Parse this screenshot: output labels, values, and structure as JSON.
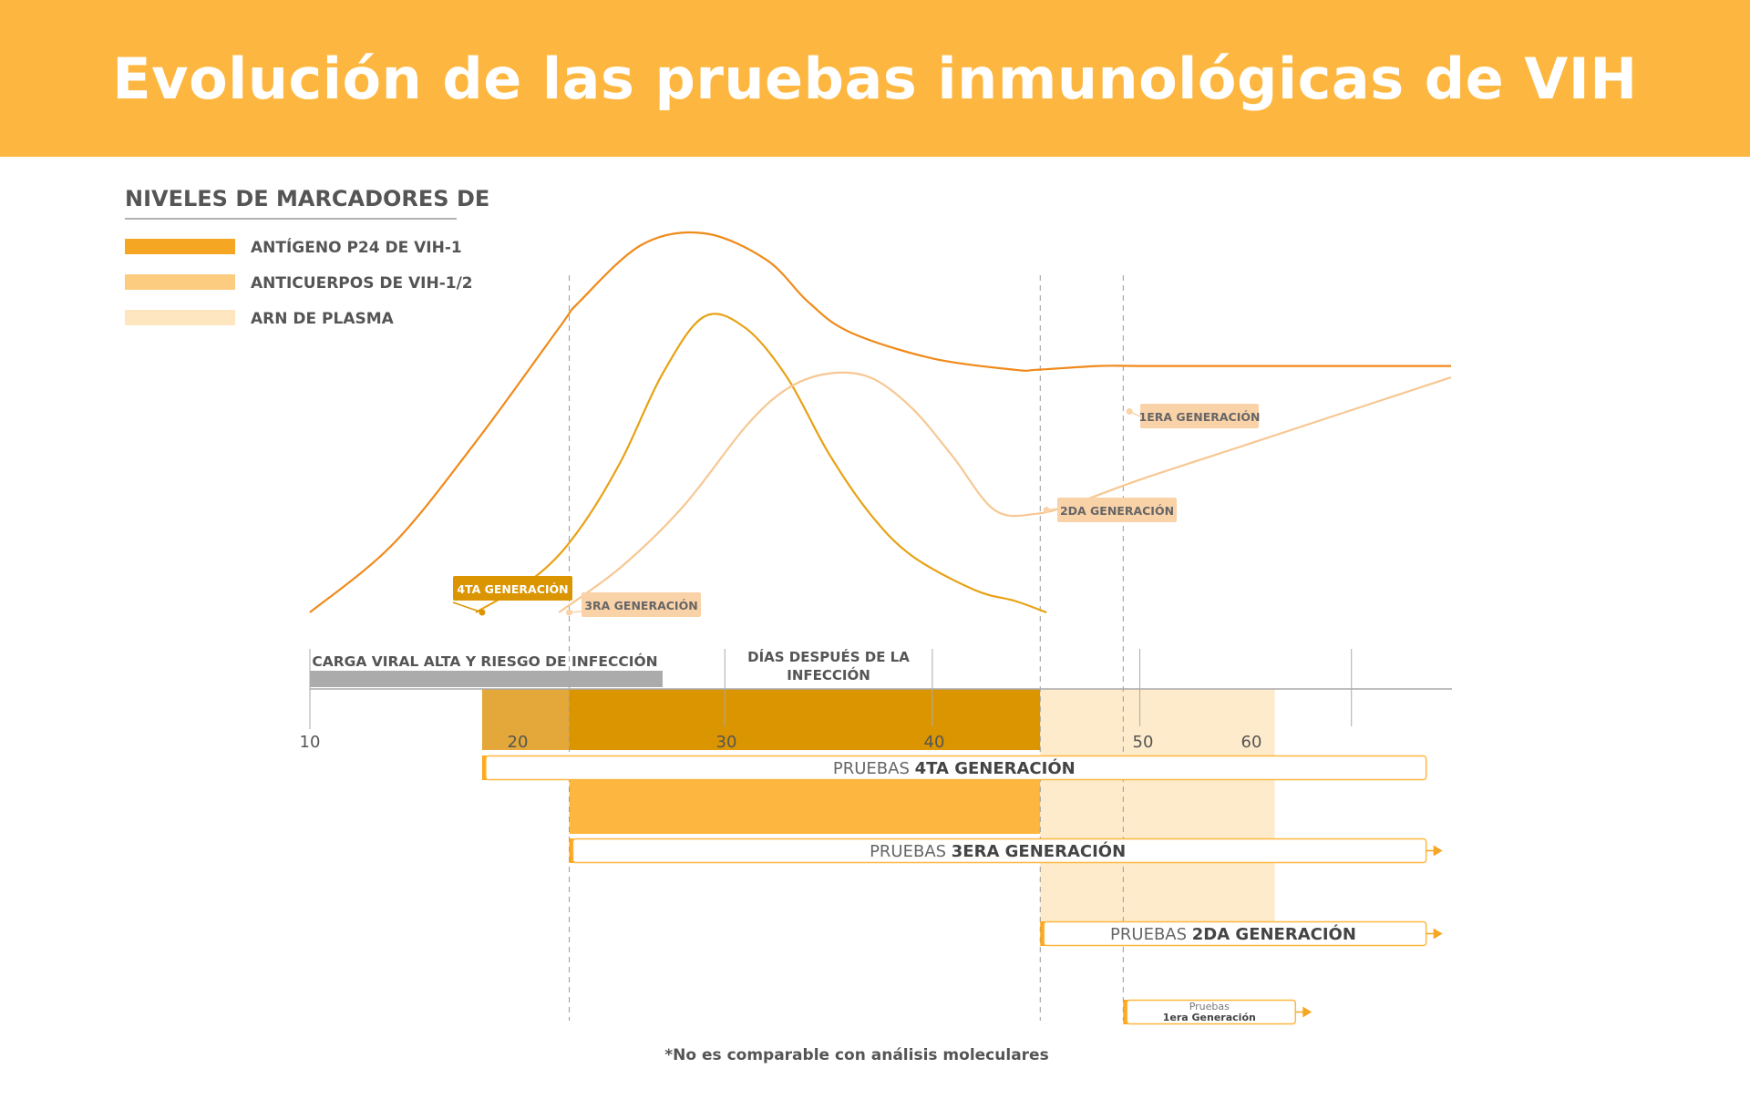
{
  "title": "Evolución de las pruebas inmunológicas de VIH",
  "footnote": "*No es comparable con análisis moleculares",
  "colors": {
    "banner": "#FDB740",
    "antigen": "#F5A623",
    "antibodies": "#FCCC80",
    "rna": "#FDE6C0",
    "curve_dark": "#F08A1A",
    "curve_mid": "#E8A215",
    "curve_light": "#F7C792",
    "gen4_dark": "#DB9500",
    "gen4_light": "#E3A839",
    "gen3": "#FDB740",
    "gen2": "#FEEBCB",
    "risk_bar": "#ABABAB"
  },
  "chart_data": {
    "type": "line",
    "legend": {
      "title": "NIVELES DE MARCADORES DE",
      "placement": "top-left",
      "items": [
        {
          "label": "ANTÍGENO P24 DE VIH-1",
          "color": "#F5A623"
        },
        {
          "label": "ANTICUERPOS DE VIH-1/2",
          "color": "#FCCC80"
        },
        {
          "label": "ARN DE PLASMA",
          "color": "#FDE6C0"
        }
      ]
    },
    "xlabel": "DÍAS DESPUÉS DE LA INFECCIÓN",
    "x_ticks": [
      {
        "label": "10",
        "value": 10
      },
      {
        "label": "20",
        "value": 20
      },
      {
        "label": "30",
        "value": 30
      },
      {
        "label": "40",
        "value": 40
      },
      {
        "label": "50",
        "value": 50
      },
      {
        "label": "60",
        "value": 60
      }
    ],
    "xlim": [
      10,
      65
    ],
    "ylim": [
      0,
      100
    ],
    "grid": false,
    "series": [
      {
        "key": "dark",
        "x": [
          10,
          14,
          18,
          22,
          23,
          26,
          29,
          32,
          34,
          36,
          40,
          44,
          45,
          48,
          50,
          55,
          60,
          65
        ],
        "y": [
          0,
          18,
          45,
          75,
          82,
          97,
          100,
          93,
          82,
          74,
          67,
          64,
          64,
          65,
          65,
          65,
          65,
          65
        ]
      },
      {
        "key": "mid",
        "x": [
          18,
          21,
          23,
          25,
          27,
          29,
          31,
          33,
          35,
          37,
          39,
          42,
          44,
          45.5
        ],
        "y": [
          0,
          10,
          22,
          40,
          63,
          78,
          75,
          62,
          42,
          26,
          15,
          6,
          3,
          0
        ]
      },
      {
        "key": "light",
        "x": [
          22,
          25,
          28,
          31,
          33,
          35,
          37,
          39,
          41,
          43,
          45,
          47,
          50,
          55,
          60,
          65
        ],
        "y": [
          0,
          12,
          28,
          49,
          59,
          63,
          62,
          54,
          41,
          27,
          26,
          29,
          35,
          44,
          53,
          62
        ]
      }
    ],
    "annotations": [
      {
        "label": "4TA GENERACIÓN",
        "x": 18.3,
        "y": 0,
        "fill": "#DB9500",
        "text_color": "#ffffff"
      },
      {
        "label": "3RA GENERACIÓN",
        "x": 22.5,
        "y": 0,
        "fill": "#FAD2A8",
        "text_color": "#666666"
      },
      {
        "label": "2DA GENERACIÓN",
        "x": 45.5,
        "y": 27,
        "fill": "#FAD2A8",
        "text_color": "#666666"
      },
      {
        "label": "1ERA GENERACIÓN",
        "x": 49.5,
        "y": 53,
        "fill": "#FAD2A8",
        "text_color": "#666666"
      }
    ],
    "risk_label": "CARGA VIRAL ALTA Y RIESGO DE INFECCIÓN",
    "risk_range": [
      10,
      27
    ],
    "tests": [
      {
        "prefix": "PRUEBAS",
        "name": "4TA GENERACIÓN",
        "start": 18.3,
        "end": 63.8,
        "arrow": false,
        "small": false
      },
      {
        "prefix": "PRUEBAS",
        "name": "3ERA GENERACIÓN",
        "start": 22.5,
        "end": 63.8,
        "arrow": true,
        "small": false
      },
      {
        "prefix": "PRUEBAS",
        "name": "2DA GENERACIÓN",
        "start": 45.2,
        "end": 63.8,
        "arrow": true,
        "small": false
      },
      {
        "prefix": "Pruebas",
        "name": "1era Generación",
        "start": 49.2,
        "end": 57.5,
        "arrow": true,
        "small": true
      }
    ],
    "windows": [
      {
        "key": "gen4_light",
        "start": 18.3,
        "end": 22.5
      },
      {
        "key": "gen4_dark",
        "start": 22.5,
        "end": 45.2
      },
      {
        "key": "gen3",
        "start": 22.5,
        "end": 45.2
      },
      {
        "key": "gen2",
        "start": 45.2,
        "end": 56.5
      }
    ]
  }
}
